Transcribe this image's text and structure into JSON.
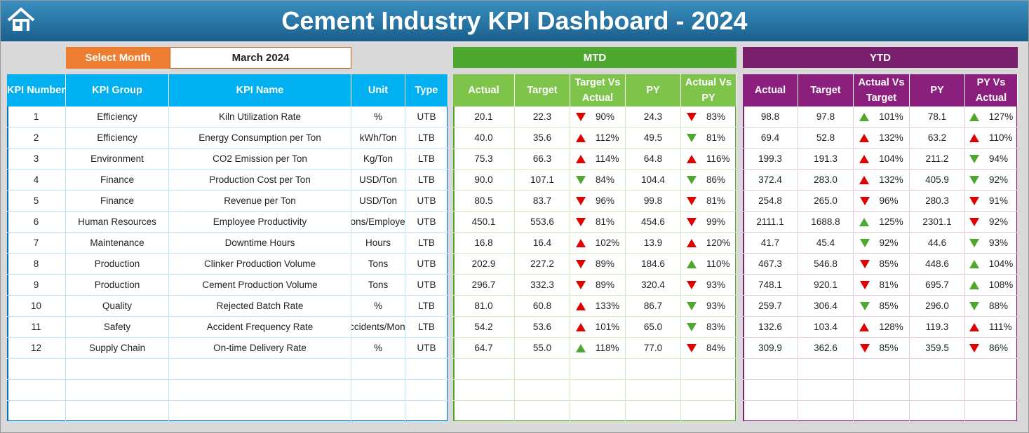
{
  "header": {
    "title": "Cement Industry KPI Dashboard - 2024"
  },
  "selector": {
    "label": "Select Month",
    "value": "March 2024"
  },
  "sections": {
    "mtd": "MTD",
    "ytd": "YTD"
  },
  "columns": {
    "kpi": [
      "KPI Number",
      "KPI Group",
      "KPI Name",
      "Unit",
      "Type"
    ],
    "mtd": [
      "Actual",
      "Target",
      "Target Vs Actual",
      "PY",
      "Actual Vs PY"
    ],
    "ytd": [
      "Actual",
      "Target",
      "Actual Vs Target",
      "PY",
      "PY Vs Actual"
    ]
  },
  "rows": [
    {
      "kpi": [
        "1",
        "Efficiency",
        "Kiln Utilization Rate",
        "%",
        "UTB"
      ],
      "mtd": [
        "20.1",
        "22.3",
        "90%",
        "24.3",
        "83%"
      ],
      "ytd": [
        "98.8",
        "97.8",
        "101%",
        "78.1",
        "127%"
      ]
    },
    {
      "kpi": [
        "2",
        "Efficiency",
        "Energy Consumption per Ton",
        "kWh/Ton",
        "LTB"
      ],
      "mtd": [
        "40.0",
        "35.6",
        "112%",
        "49.5",
        "81%"
      ],
      "ytd": [
        "69.4",
        "52.8",
        "132%",
        "63.2",
        "110%"
      ]
    },
    {
      "kpi": [
        "3",
        "Environment",
        "CO2 Emission per Ton",
        "Kg/Ton",
        "LTB"
      ],
      "mtd": [
        "75.3",
        "66.3",
        "114%",
        "64.8",
        "116%"
      ],
      "ytd": [
        "199.3",
        "191.3",
        "104%",
        "211.2",
        "94%"
      ]
    },
    {
      "kpi": [
        "4",
        "Finance",
        "Production Cost per Ton",
        "USD/Ton",
        "LTB"
      ],
      "mtd": [
        "90.0",
        "107.1",
        "84%",
        "104.4",
        "86%"
      ],
      "ytd": [
        "372.4",
        "283.0",
        "132%",
        "405.9",
        "92%"
      ]
    },
    {
      "kpi": [
        "5",
        "Finance",
        "Revenue per Ton",
        "USD/Ton",
        "UTB"
      ],
      "mtd": [
        "80.5",
        "83.7",
        "96%",
        "99.8",
        "81%"
      ],
      "ytd": [
        "254.8",
        "265.0",
        "96%",
        "280.3",
        "91%"
      ]
    },
    {
      "kpi": [
        "6",
        "Human Resources",
        "Employee Productivity",
        "Tons/Employee",
        "UTB"
      ],
      "mtd": [
        "450.1",
        "553.6",
        "81%",
        "454.6",
        "99%"
      ],
      "ytd": [
        "2111.1",
        "1688.8",
        "125%",
        "2301.1",
        "92%"
      ]
    },
    {
      "kpi": [
        "7",
        "Maintenance",
        "Downtime Hours",
        "Hours",
        "LTB"
      ],
      "mtd": [
        "16.8",
        "16.4",
        "102%",
        "13.9",
        "120%"
      ],
      "ytd": [
        "41.7",
        "45.4",
        "92%",
        "44.6",
        "93%"
      ]
    },
    {
      "kpi": [
        "8",
        "Production",
        "Clinker Production Volume",
        "Tons",
        "UTB"
      ],
      "mtd": [
        "202.9",
        "227.2",
        "89%",
        "184.6",
        "110%"
      ],
      "ytd": [
        "467.3",
        "546.8",
        "85%",
        "448.6",
        "104%"
      ]
    },
    {
      "kpi": [
        "9",
        "Production",
        "Cement Production Volume",
        "Tons",
        "UTB"
      ],
      "mtd": [
        "296.7",
        "332.3",
        "89%",
        "320.4",
        "93%"
      ],
      "ytd": [
        "748.1",
        "920.1",
        "81%",
        "695.7",
        "108%"
      ]
    },
    {
      "kpi": [
        "10",
        "Quality",
        "Rejected Batch Rate",
        "%",
        "LTB"
      ],
      "mtd": [
        "81.0",
        "60.8",
        "133%",
        "86.7",
        "93%"
      ],
      "ytd": [
        "259.7",
        "306.4",
        "85%",
        "296.0",
        "88%"
      ]
    },
    {
      "kpi": [
        "11",
        "Safety",
        "Accident Frequency Rate",
        "Accidents/Month",
        "LTB"
      ],
      "mtd": [
        "54.2",
        "53.6",
        "101%",
        "65.0",
        "83%"
      ],
      "ytd": [
        "132.6",
        "103.4",
        "128%",
        "119.3",
        "111%"
      ]
    },
    {
      "kpi": [
        "12",
        "Supply Chain",
        "On-time Delivery Rate",
        "%",
        "UTB"
      ],
      "mtd": [
        "64.7",
        "55.0",
        "118%",
        "77.0",
        "84%"
      ],
      "ytd": [
        "309.9",
        "362.6",
        "85%",
        "359.5",
        "86%"
      ]
    }
  ]
}
